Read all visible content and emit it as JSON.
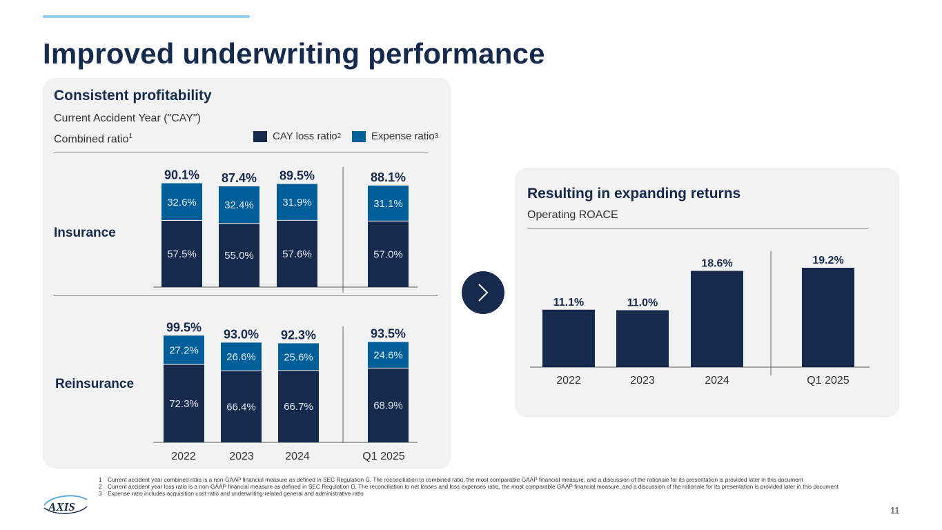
{
  "title": "Improved underwriting performance",
  "left_panel": {
    "heading": "Consistent profitability",
    "sub1": "Current Accident Year (\"CAY\")",
    "sub2": "Combined ratio",
    "sub2_sup": "1",
    "legend": {
      "loss_label": "CAY loss ratio",
      "loss_sup": "2",
      "expense_label": "Expense ratio",
      "expense_sup": "3"
    },
    "row_labels": {
      "insurance": "Insurance",
      "reinsurance": "Reinsurance"
    }
  },
  "right_panel": {
    "heading": "Resulting in expanding returns",
    "sub": "Operating ROACE"
  },
  "colors": {
    "loss": "#152a4c",
    "expense": "#005f99",
    "bg_panel": "#f2f2f2"
  },
  "chart_data": [
    {
      "type": "bar",
      "stacked": true,
      "title": "Insurance",
      "categories": [
        "2022",
        "2023",
        "2024",
        "Q1 2025"
      ],
      "series": [
        {
          "name": "CAY loss ratio",
          "values": [
            57.5,
            55.0,
            57.6,
            57.0
          ],
          "labels": [
            "57.5%",
            "55.0%",
            "57.6%",
            "57.0%"
          ]
        },
        {
          "name": "Expense ratio",
          "values": [
            32.6,
            32.4,
            31.9,
            31.1
          ],
          "labels": [
            "32.6%",
            "32.4%",
            "31.9%",
            "31.1%"
          ]
        }
      ],
      "totals": [
        90.1,
        87.4,
        89.5,
        88.1
      ],
      "total_labels": [
        "90.1%",
        "87.4%",
        "89.5%",
        "88.1%"
      ]
    },
    {
      "type": "bar",
      "stacked": true,
      "title": "Reinsurance",
      "categories": [
        "2022",
        "2023",
        "2024",
        "Q1 2025"
      ],
      "series": [
        {
          "name": "CAY loss ratio",
          "values": [
            72.3,
            66.4,
            66.7,
            68.9
          ],
          "labels": [
            "72.3%",
            "66.4%",
            "66.7%",
            "68.9%"
          ]
        },
        {
          "name": "Expense ratio",
          "values": [
            27.2,
            26.6,
            25.6,
            24.6
          ],
          "labels": [
            "27.2%",
            "26.6%",
            "25.6%",
            "24.6%"
          ]
        }
      ],
      "totals": [
        99.5,
        93.0,
        92.3,
        93.5
      ],
      "total_labels": [
        "99.5%",
        "93.0%",
        "92.3%",
        "93.5%"
      ]
    },
    {
      "type": "bar",
      "title": "Operating ROACE",
      "categories": [
        "2022",
        "2023",
        "2024",
        "Q1 2025"
      ],
      "values": [
        11.1,
        11.0,
        18.6,
        19.2
      ],
      "labels": [
        "11.1%",
        "11.0%",
        "18.6%",
        "19.2%"
      ]
    }
  ],
  "footnotes": [
    {
      "num": "1",
      "text": "Current accident year combined ratio is a non-GAAP financial measure as defined in SEC Regulation G. The reconciliation to combined ratio, the most comparable GAAP financial measure, and a discussion of the rationale for its presentation is provided later in this document"
    },
    {
      "num": "2",
      "text": "Current accident year loss ratio is a non-GAAP financial measure as defined in SEC Regulation G. The reconciliation to net losses and loss expenses ratio, the most comparable GAAP financial measure, and a discussion of the rationale for its presentation is provided later in this document"
    },
    {
      "num": "3",
      "text": "Expense ratio includes acquisition cost ratio and underwriting-related general and administrative ratio"
    }
  ],
  "page_number": "11",
  "logo_text": "AXIS"
}
